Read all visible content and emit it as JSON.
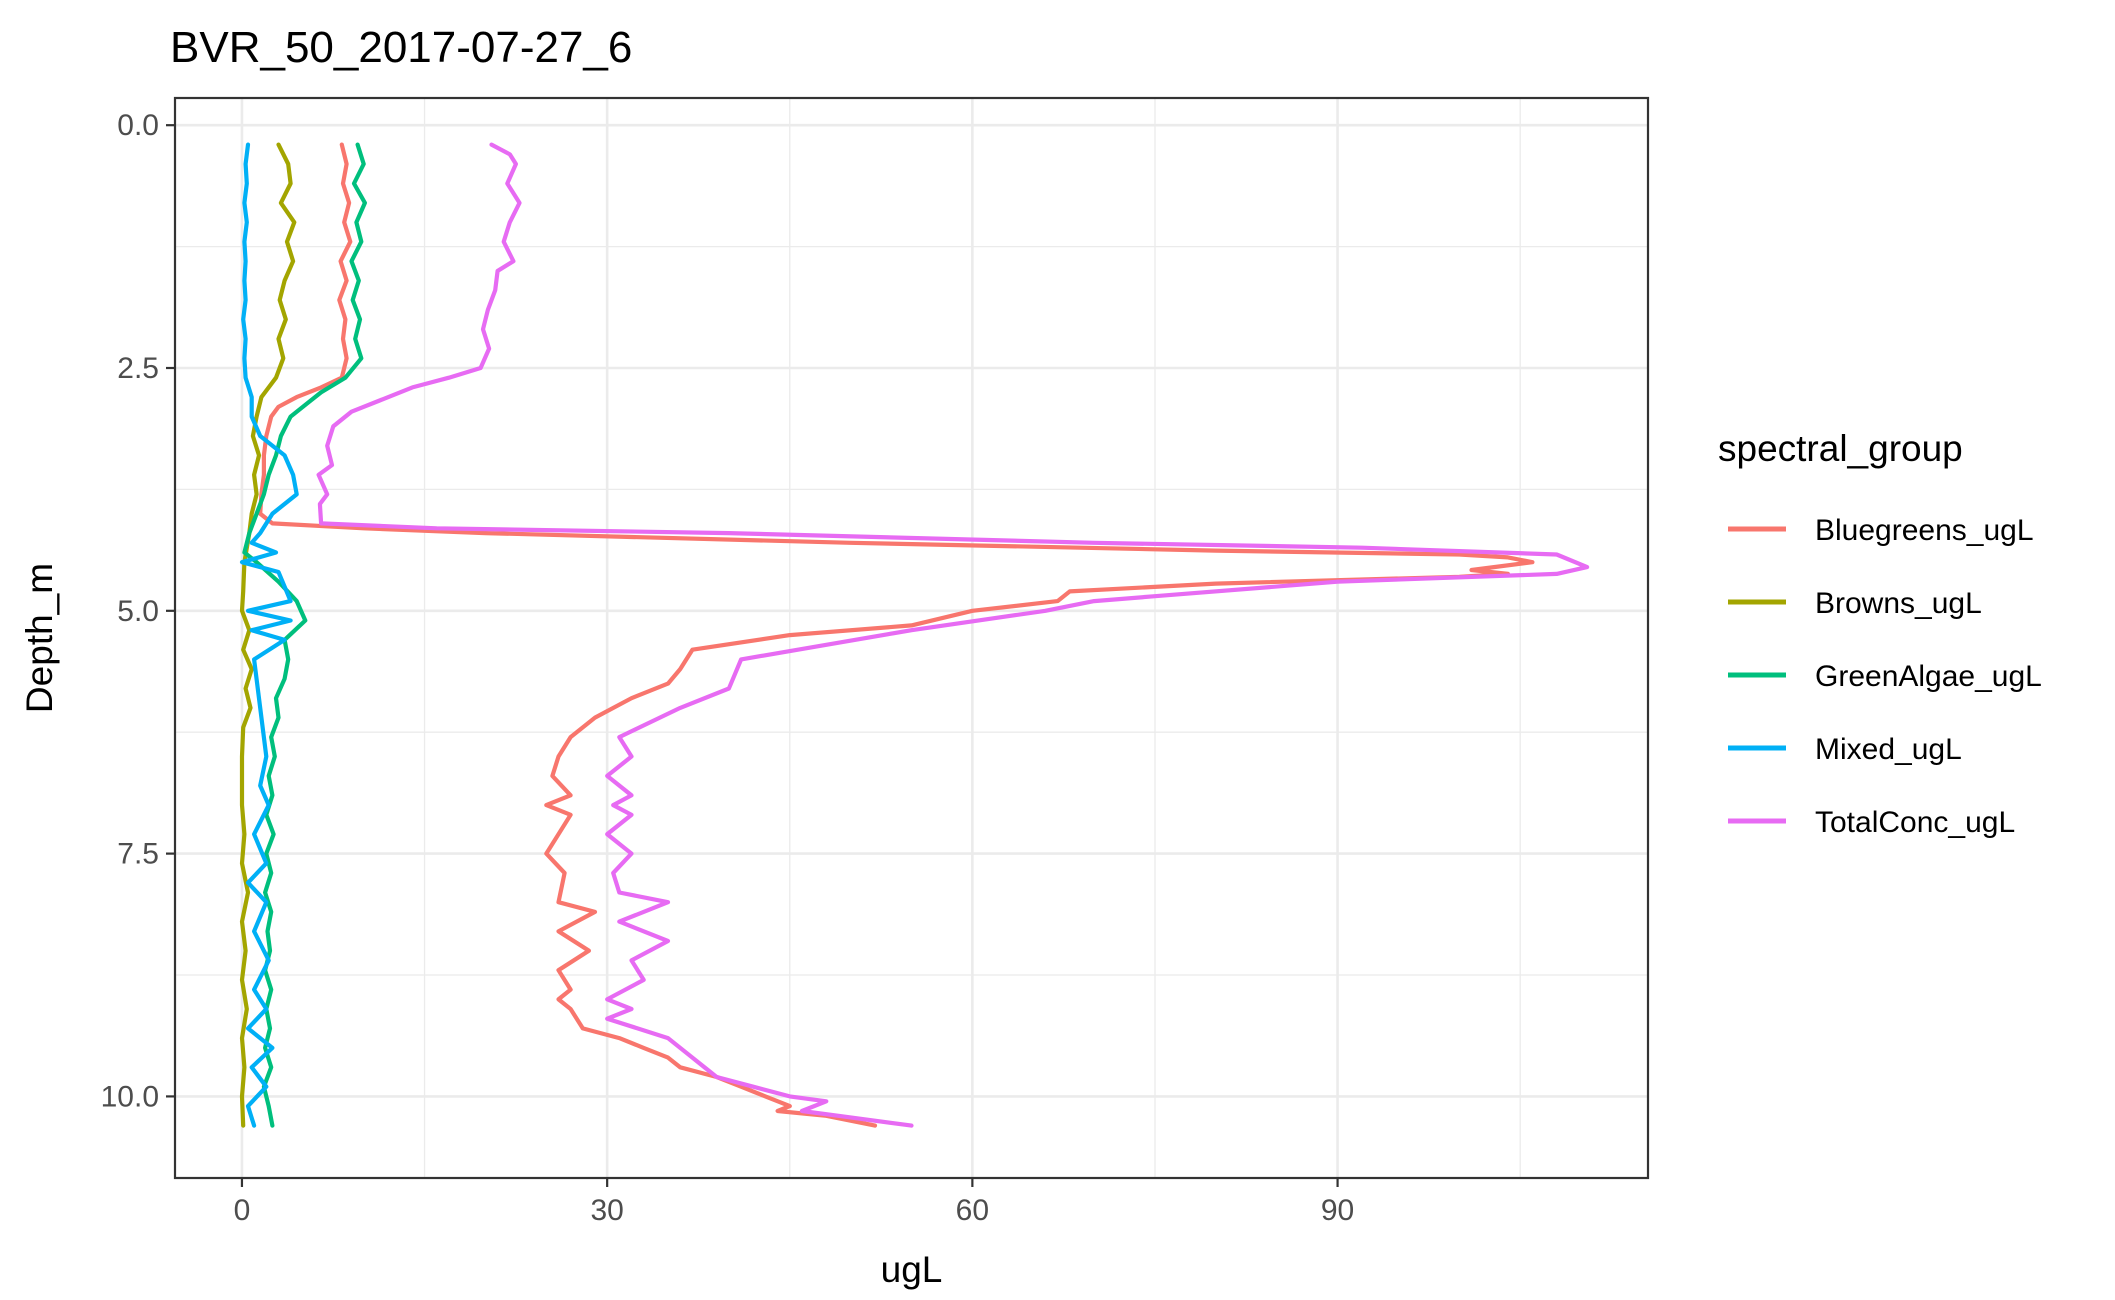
{
  "chart_data": {
    "type": "line",
    "title": "BVR_50_2017-07-27_6",
    "xlabel": "ugL",
    "ylabel": "Depth_m",
    "xlim": [
      -5.5,
      115.5
    ],
    "ylim": [
      -0.28,
      10.84
    ],
    "y_reversed": true,
    "grid": true,
    "legend_placement": "right",
    "legend_title": "spectral_group",
    "x_ticks": [
      0,
      30,
      60,
      90
    ],
    "x_tick_labels": [
      "0",
      "30",
      "60",
      "90"
    ],
    "y_ticks": [
      0,
      2.5,
      5,
      7.5,
      10
    ],
    "y_tick_labels": [
      "0.0",
      "2.5",
      "5.0",
      "7.5",
      "10.0"
    ],
    "series": [
      {
        "name": "Bluegreens_ugL",
        "color": "#F8766D",
        "points": [
          [
            8.2,
            0.2
          ],
          [
            8.6,
            0.4
          ],
          [
            8.3,
            0.6
          ],
          [
            8.8,
            0.8
          ],
          [
            8.4,
            1.0
          ],
          [
            8.9,
            1.2
          ],
          [
            8.1,
            1.4
          ],
          [
            8.6,
            1.6
          ],
          [
            8.0,
            1.8
          ],
          [
            8.5,
            2.0
          ],
          [
            8.3,
            2.2
          ],
          [
            8.6,
            2.4
          ],
          [
            8.2,
            2.6
          ],
          [
            6.5,
            2.7
          ],
          [
            4.5,
            2.8
          ],
          [
            3.0,
            2.9
          ],
          [
            2.4,
            3.0
          ],
          [
            2.0,
            3.2
          ],
          [
            1.8,
            3.4
          ],
          [
            1.8,
            3.6
          ],
          [
            1.6,
            3.8
          ],
          [
            1.5,
            4.0
          ],
          [
            2.5,
            4.1
          ],
          [
            10.0,
            4.15
          ],
          [
            20.0,
            4.2
          ],
          [
            50.0,
            4.3
          ],
          [
            80.0,
            4.38
          ],
          [
            100.0,
            4.42
          ],
          [
            104.0,
            4.45
          ],
          [
            106.0,
            4.5
          ],
          [
            101.0,
            4.58
          ],
          [
            104.0,
            4.62
          ],
          [
            100.0,
            4.65
          ],
          [
            80.0,
            4.72
          ],
          [
            68.0,
            4.8
          ],
          [
            67.0,
            4.9
          ],
          [
            60.0,
            5.0
          ],
          [
            55.0,
            5.15
          ],
          [
            45.0,
            5.25
          ],
          [
            37.0,
            5.4
          ],
          [
            36.0,
            5.6
          ],
          [
            35.0,
            5.75
          ],
          [
            32.0,
            5.9
          ],
          [
            29.0,
            6.1
          ],
          [
            27.0,
            6.3
          ],
          [
            26.0,
            6.5
          ],
          [
            25.5,
            6.7
          ],
          [
            27.0,
            6.9
          ],
          [
            25.0,
            7.0
          ],
          [
            27.0,
            7.1
          ],
          [
            26.0,
            7.3
          ],
          [
            25.0,
            7.5
          ],
          [
            26.5,
            7.7
          ],
          [
            26.0,
            8.0
          ],
          [
            29.0,
            8.1
          ],
          [
            26.0,
            8.3
          ],
          [
            28.5,
            8.5
          ],
          [
            26.0,
            8.7
          ],
          [
            27.0,
            8.9
          ],
          [
            26.0,
            9.0
          ],
          [
            27.0,
            9.1
          ],
          [
            28.0,
            9.3
          ],
          [
            31.0,
            9.4
          ],
          [
            33.0,
            9.5
          ],
          [
            35.0,
            9.6
          ],
          [
            36.0,
            9.7
          ],
          [
            39.0,
            9.8
          ],
          [
            41.0,
            9.9
          ],
          [
            43.0,
            10.0
          ],
          [
            45.0,
            10.1
          ],
          [
            44.0,
            10.15
          ],
          [
            48.0,
            10.2
          ],
          [
            52.0,
            10.3
          ]
        ]
      },
      {
        "name": "Browns_ugL",
        "color": "#A3A500",
        "points": [
          [
            3.0,
            0.2
          ],
          [
            3.8,
            0.4
          ],
          [
            4.0,
            0.6
          ],
          [
            3.2,
            0.8
          ],
          [
            4.3,
            1.0
          ],
          [
            3.7,
            1.2
          ],
          [
            4.2,
            1.4
          ],
          [
            3.5,
            1.6
          ],
          [
            3.1,
            1.8
          ],
          [
            3.6,
            2.0
          ],
          [
            3.0,
            2.2
          ],
          [
            3.4,
            2.4
          ],
          [
            2.8,
            2.6
          ],
          [
            1.6,
            2.8
          ],
          [
            1.2,
            3.0
          ],
          [
            0.9,
            3.2
          ],
          [
            1.4,
            3.4
          ],
          [
            1.0,
            3.6
          ],
          [
            1.2,
            3.8
          ],
          [
            0.8,
            4.0
          ],
          [
            0.6,
            4.2
          ],
          [
            0.2,
            4.5
          ],
          [
            0.1,
            4.8
          ],
          [
            0.0,
            5.0
          ],
          [
            0.6,
            5.2
          ],
          [
            0.1,
            5.4
          ],
          [
            0.8,
            5.6
          ],
          [
            0.3,
            5.8
          ],
          [
            0.7,
            6.0
          ],
          [
            0.1,
            6.2
          ],
          [
            0.0,
            6.5
          ],
          [
            0.0,
            7.0
          ],
          [
            0.2,
            7.3
          ],
          [
            0.0,
            7.6
          ],
          [
            0.5,
            7.9
          ],
          [
            0.0,
            8.2
          ],
          [
            0.3,
            8.5
          ],
          [
            0.0,
            8.8
          ],
          [
            0.4,
            9.1
          ],
          [
            0.0,
            9.4
          ],
          [
            0.2,
            9.7
          ],
          [
            0.0,
            10.0
          ],
          [
            0.1,
            10.3
          ]
        ]
      },
      {
        "name": "GreenAlgae_ugL",
        "color": "#00BF7D",
        "points": [
          [
            9.5,
            0.2
          ],
          [
            10.0,
            0.4
          ],
          [
            9.2,
            0.6
          ],
          [
            10.1,
            0.8
          ],
          [
            9.4,
            1.0
          ],
          [
            9.8,
            1.2
          ],
          [
            9.0,
            1.4
          ],
          [
            9.6,
            1.6
          ],
          [
            9.1,
            1.8
          ],
          [
            9.7,
            2.0
          ],
          [
            9.3,
            2.2
          ],
          [
            9.8,
            2.4
          ],
          [
            8.5,
            2.6
          ],
          [
            6.5,
            2.75
          ],
          [
            5.5,
            2.85
          ],
          [
            4.0,
            3.0
          ],
          [
            3.2,
            3.2
          ],
          [
            2.8,
            3.4
          ],
          [
            2.2,
            3.6
          ],
          [
            1.8,
            3.8
          ],
          [
            1.2,
            4.0
          ],
          [
            0.6,
            4.2
          ],
          [
            0.2,
            4.4
          ],
          [
            1.2,
            4.5
          ],
          [
            3.0,
            4.7
          ],
          [
            4.5,
            4.9
          ],
          [
            5.2,
            5.1
          ],
          [
            3.5,
            5.3
          ],
          [
            3.8,
            5.5
          ],
          [
            3.5,
            5.7
          ],
          [
            2.8,
            5.9
          ],
          [
            3.0,
            6.1
          ],
          [
            2.4,
            6.3
          ],
          [
            2.7,
            6.5
          ],
          [
            2.2,
            6.7
          ],
          [
            2.5,
            6.9
          ],
          [
            2.0,
            7.1
          ],
          [
            2.6,
            7.3
          ],
          [
            2.0,
            7.5
          ],
          [
            2.4,
            7.7
          ],
          [
            1.9,
            7.9
          ],
          [
            2.4,
            8.1
          ],
          [
            2.1,
            8.3
          ],
          [
            2.3,
            8.5
          ],
          [
            1.9,
            8.7
          ],
          [
            2.4,
            8.9
          ],
          [
            2.0,
            9.1
          ],
          [
            2.3,
            9.3
          ],
          [
            1.9,
            9.5
          ],
          [
            2.4,
            9.7
          ],
          [
            1.8,
            9.9
          ],
          [
            2.2,
            10.1
          ],
          [
            2.5,
            10.3
          ]
        ]
      },
      {
        "name": "Mixed_ugL",
        "color": "#00B0F6",
        "points": [
          [
            0.5,
            0.2
          ],
          [
            0.3,
            0.4
          ],
          [
            0.4,
            0.6
          ],
          [
            0.2,
            0.8
          ],
          [
            0.4,
            1.0
          ],
          [
            0.2,
            1.2
          ],
          [
            0.3,
            1.4
          ],
          [
            0.2,
            1.6
          ],
          [
            0.3,
            1.8
          ],
          [
            0.1,
            2.0
          ],
          [
            0.3,
            2.2
          ],
          [
            0.2,
            2.4
          ],
          [
            0.3,
            2.6
          ],
          [
            0.8,
            2.8
          ],
          [
            0.8,
            3.0
          ],
          [
            1.5,
            3.2
          ],
          [
            3.5,
            3.4
          ],
          [
            4.2,
            3.6
          ],
          [
            4.5,
            3.8
          ],
          [
            2.5,
            4.0
          ],
          [
            1.5,
            4.2
          ],
          [
            0.8,
            4.3
          ],
          [
            2.8,
            4.4
          ],
          [
            0.0,
            4.5
          ],
          [
            3.0,
            4.6
          ],
          [
            4.0,
            4.9
          ],
          [
            0.5,
            5.0
          ],
          [
            4.0,
            5.1
          ],
          [
            0.8,
            5.2
          ],
          [
            3.5,
            5.3
          ],
          [
            1.0,
            5.5
          ],
          [
            1.5,
            6.0
          ],
          [
            2.0,
            6.5
          ],
          [
            1.5,
            6.8
          ],
          [
            2.2,
            7.0
          ],
          [
            1.0,
            7.3
          ],
          [
            2.0,
            7.6
          ],
          [
            0.5,
            7.8
          ],
          [
            2.0,
            8.0
          ],
          [
            1.0,
            8.3
          ],
          [
            2.2,
            8.6
          ],
          [
            1.0,
            8.9
          ],
          [
            2.0,
            9.1
          ],
          [
            0.5,
            9.3
          ],
          [
            2.5,
            9.5
          ],
          [
            0.8,
            9.7
          ],
          [
            2.0,
            9.9
          ],
          [
            0.5,
            10.1
          ],
          [
            1.0,
            10.3
          ]
        ]
      },
      {
        "name": "TotalConc_ugL",
        "color": "#E76BF3",
        "points": [
          [
            20.5,
            0.2
          ],
          [
            22.0,
            0.3
          ],
          [
            22.5,
            0.4
          ],
          [
            21.8,
            0.6
          ],
          [
            22.8,
            0.8
          ],
          [
            22.0,
            1.0
          ],
          [
            21.5,
            1.2
          ],
          [
            22.3,
            1.4
          ],
          [
            21.0,
            1.5
          ],
          [
            20.8,
            1.7
          ],
          [
            20.2,
            1.9
          ],
          [
            19.8,
            2.1
          ],
          [
            20.3,
            2.3
          ],
          [
            19.6,
            2.5
          ],
          [
            17.0,
            2.6
          ],
          [
            14.0,
            2.7
          ],
          [
            11.0,
            2.85
          ],
          [
            9.0,
            2.95
          ],
          [
            7.5,
            3.1
          ],
          [
            7.0,
            3.3
          ],
          [
            7.4,
            3.5
          ],
          [
            6.3,
            3.6
          ],
          [
            7.0,
            3.8
          ],
          [
            6.4,
            3.9
          ],
          [
            6.5,
            4.1
          ],
          [
            16.0,
            4.15
          ],
          [
            40.0,
            4.2
          ],
          [
            70.0,
            4.3
          ],
          [
            92.0,
            4.35
          ],
          [
            108.0,
            4.42
          ],
          [
            110.5,
            4.55
          ],
          [
            108.0,
            4.62
          ],
          [
            90.0,
            4.7
          ],
          [
            75.0,
            4.85
          ],
          [
            70.0,
            4.9
          ],
          [
            66.0,
            5.0
          ],
          [
            55.0,
            5.2
          ],
          [
            48.0,
            5.35
          ],
          [
            41.0,
            5.5
          ],
          [
            40.0,
            5.8
          ],
          [
            36.0,
            6.0
          ],
          [
            31.0,
            6.3
          ],
          [
            32.0,
            6.5
          ],
          [
            30.0,
            6.7
          ],
          [
            32.0,
            6.9
          ],
          [
            30.5,
            7.0
          ],
          [
            32.0,
            7.1
          ],
          [
            30.0,
            7.3
          ],
          [
            32.0,
            7.5
          ],
          [
            30.5,
            7.7
          ],
          [
            31.0,
            7.9
          ],
          [
            35.0,
            8.0
          ],
          [
            31.0,
            8.2
          ],
          [
            35.0,
            8.4
          ],
          [
            32.0,
            8.6
          ],
          [
            33.0,
            8.8
          ],
          [
            30.0,
            9.0
          ],
          [
            32.0,
            9.1
          ],
          [
            30.0,
            9.2
          ],
          [
            35.0,
            9.4
          ],
          [
            37.0,
            9.6
          ],
          [
            38.0,
            9.7
          ],
          [
            39.0,
            9.8
          ],
          [
            42.0,
            9.9
          ],
          [
            45.0,
            10.0
          ],
          [
            48.0,
            10.05
          ],
          [
            46.0,
            10.15
          ],
          [
            49.0,
            10.2
          ],
          [
            55.0,
            10.3
          ]
        ]
      }
    ]
  }
}
